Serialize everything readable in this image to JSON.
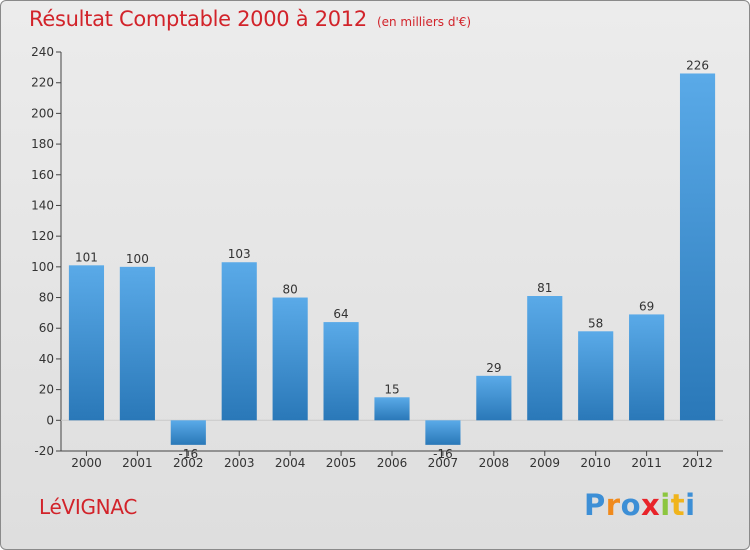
{
  "title": "Résultat Comptable 2000 à 2012",
  "subtitle": "(en milliers d'€)",
  "town": "LéVIGNAC",
  "logo": {
    "letters": [
      "P",
      "r",
      "o",
      "x",
      "i",
      "t",
      "i"
    ],
    "colors": [
      "#3d8fd6",
      "#f08a1c",
      "#3d8fd6",
      "#e8242a",
      "#8cc63f",
      "#f0b41c",
      "#3d8fd6"
    ]
  },
  "colors": {
    "bar_top": "#5aaae8",
    "bar_bottom": "#2a78b8",
    "title": "#d2232a",
    "axis": "#444444"
  },
  "chart_data": {
    "type": "bar",
    "categories": [
      "2000",
      "2001",
      "2002",
      "2003",
      "2004",
      "2005",
      "2006",
      "2007",
      "2008",
      "2009",
      "2010",
      "2011",
      "2012"
    ],
    "values": [
      101,
      100,
      -16,
      103,
      80,
      64,
      15,
      -16,
      29,
      81,
      58,
      69,
      226
    ],
    "data_labels": [
      "101",
      "100",
      "-16",
      "103",
      "80",
      "64",
      "15",
      "-16",
      "29",
      "81",
      "58",
      "69",
      "226"
    ],
    "ylim": [
      -20,
      240
    ],
    "yticks": [
      -20,
      0,
      20,
      40,
      60,
      80,
      100,
      120,
      140,
      160,
      180,
      200,
      220,
      240
    ],
    "grid": false
  }
}
